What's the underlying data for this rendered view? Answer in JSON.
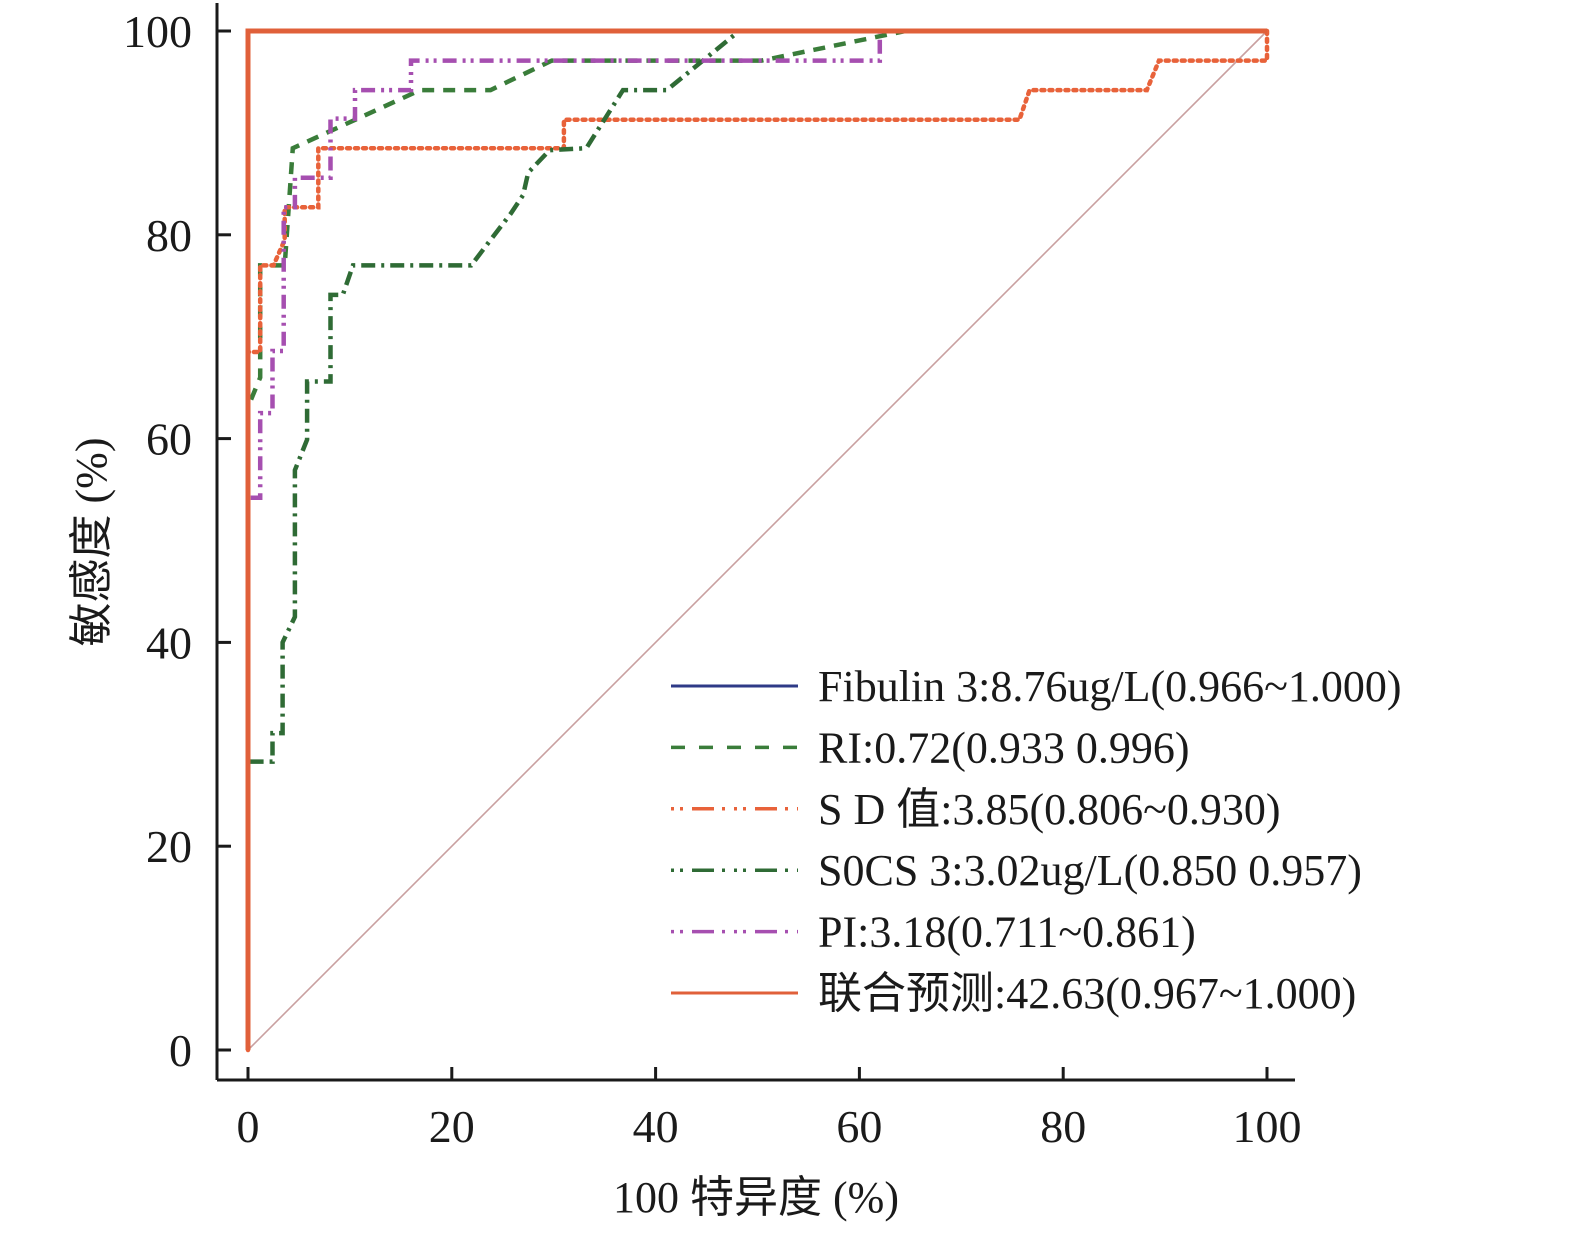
{
  "chart_data": {
    "type": "line",
    "title": "",
    "xlabel": "100 特异度 (%)",
    "ylabel": "敏感度 (%)",
    "xlim": [
      0,
      100
    ],
    "ylim": [
      0,
      100
    ],
    "xticks": [
      "0",
      "20",
      "40",
      "60",
      "80",
      "100"
    ],
    "yticks": [
      "0",
      "20",
      "40",
      "60",
      "80",
      "100"
    ],
    "grid": false,
    "legend_position": "bottom-right",
    "reference_line": {
      "name": "diagonal",
      "color": "#c9a0a0",
      "x": [
        0,
        100
      ],
      "y": [
        0,
        100
      ]
    },
    "series": [
      {
        "name": "Fibulin 3:8.76ug/L(0.966~1.000)",
        "color": "#2e3a87",
        "style": "solid",
        "x": [
          0,
          0,
          100
        ],
        "y": [
          0,
          100,
          100
        ]
      },
      {
        "name": "RI:0.72(0.933 0.996)",
        "color": "#3a7d3a",
        "style": "dashed",
        "x": [
          0,
          0,
          1.2,
          1.2,
          3.6,
          4.4,
          16.9,
          23.8,
          29.8,
          50.4,
          64.5,
          100
        ],
        "y": [
          0,
          63.1,
          66.0,
          77.0,
          77.0,
          88.5,
          94.2,
          94.2,
          97.1,
          97.1,
          100,
          100
        ]
      },
      {
        "name": "S D 值:3.85(0.806~0.930)",
        "color": "#e8623a",
        "style": "dotted",
        "x": [
          0,
          0,
          1.2,
          1.2,
          2.5,
          3.6,
          3.6,
          6.9,
          6.9,
          31.0,
          31.0,
          75.7,
          76.7,
          88.2,
          89.4,
          100,
          100
        ],
        "y": [
          0,
          68.5,
          68.5,
          77.0,
          77.0,
          79.5,
          82.7,
          82.7,
          88.5,
          88.5,
          91.3,
          91.3,
          94.2,
          94.2,
          97.1,
          97.1,
          100
        ]
      },
      {
        "name": "S0CS 3:3.02ug/L(0.850 0.957)",
        "color": "#2f6b35",
        "style": "dashdot",
        "x": [
          0,
          0,
          2.4,
          2.4,
          3.4,
          3.4,
          4.6,
          4.6,
          5.8,
          5.8,
          8.1,
          8.1,
          9.3,
          10.3,
          21.9,
          23.2,
          25.8,
          27.0,
          27.5,
          29.6,
          33.2,
          36.8,
          41.1,
          48.2,
          100
        ],
        "y": [
          0,
          28.3,
          28.3,
          31.1,
          31.1,
          40.0,
          42.5,
          56.9,
          59.9,
          65.6,
          65.6,
          74.1,
          74.1,
          77.0,
          77.0,
          78.7,
          82.1,
          83.9,
          86.1,
          88.3,
          88.5,
          94.2,
          94.2,
          100,
          100
        ]
      },
      {
        "name": "PI:3.18(0.711~0.861)",
        "color": "#a64fb0",
        "style": "dashdotdot",
        "x": [
          0,
          0,
          0.5,
          1.2,
          1.2,
          2.4,
          2.4,
          3.5,
          3.5,
          4.6,
          4.6,
          8.1,
          8.1,
          10.5,
          10.5,
          16.0,
          16.0,
          62.0,
          62.0,
          100
        ],
        "y": [
          0,
          54.2,
          54.2,
          54.2,
          62.5,
          62.5,
          68.6,
          68.6,
          82.7,
          82.7,
          85.6,
          85.6,
          91.4,
          91.4,
          94.2,
          94.2,
          97.1,
          97.1,
          100,
          100
        ]
      },
      {
        "name": "联合预测:42.63(0.967~1.000)",
        "color": "#e0603a",
        "style": "solid",
        "x": [
          0,
          0,
          100
        ],
        "y": [
          0,
          100,
          100
        ]
      }
    ]
  }
}
